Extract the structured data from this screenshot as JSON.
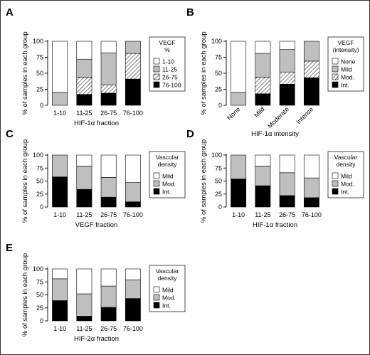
{
  "colors": {
    "black": "#000000",
    "gray": "#bfbfbf",
    "white": "#ffffff",
    "hatch": "hatch"
  },
  "chart_data": [
    {
      "panel": "A",
      "type": "bar",
      "stacked": true,
      "categories": [
        "1-10",
        "11-25",
        "26-75",
        "76-100"
      ],
      "xlabel": "HIF-1α fraction",
      "ylabel": "% of samples in each group",
      "ylim": [
        0,
        100
      ],
      "yticks": [
        0,
        25,
        50,
        75,
        100
      ],
      "legend": {
        "title": [
          "VEGF",
          "%"
        ],
        "placement": "right"
      },
      "series": [
        {
          "name": "76-100",
          "fill": "black",
          "values": [
            0,
            17,
            19,
            41
          ]
        },
        {
          "name": "26-75",
          "fill": "hatch",
          "values": [
            0,
            27,
            13,
            40
          ]
        },
        {
          "name": "11-25",
          "fill": "gray",
          "values": [
            20,
            28,
            50,
            19
          ]
        },
        {
          "name": "1-10",
          "fill": "white",
          "values": [
            80,
            28,
            18,
            0
          ]
        }
      ]
    },
    {
      "panel": "B",
      "type": "bar",
      "stacked": true,
      "categories": [
        "None",
        "Mild",
        "Moderate",
        "Intense"
      ],
      "x_rotated": true,
      "xlabel": "HIF-1α intensity",
      "ylabel": "% of samples in each group",
      "ylim": [
        0,
        100
      ],
      "yticks": [
        0,
        25,
        50,
        75,
        100
      ],
      "legend": {
        "title": [
          "VEGF",
          "(intensity)"
        ],
        "placement": "right"
      },
      "series": [
        {
          "name": "Int.",
          "fill": "black",
          "values": [
            0,
            18,
            33,
            43
          ]
        },
        {
          "name": "Mod.",
          "fill": "hatch",
          "values": [
            0,
            26,
            19,
            26
          ]
        },
        {
          "name": "Mild",
          "fill": "gray",
          "values": [
            20,
            37,
            35,
            31
          ]
        },
        {
          "name": "None",
          "fill": "white",
          "values": [
            80,
            19,
            13,
            0
          ]
        }
      ]
    },
    {
      "panel": "C",
      "type": "bar",
      "stacked": true,
      "categories": [
        "1-10",
        "11-25",
        "26-75",
        "76-100"
      ],
      "xlabel": "VEGF fraction",
      "ylabel": "% of samples in each group",
      "ylim": [
        0,
        100
      ],
      "yticks": [
        0,
        25,
        50,
        75,
        100
      ],
      "legend": {
        "title": [
          "Vascular",
          "density"
        ],
        "placement": "right"
      },
      "series": [
        {
          "name": "Int.",
          "fill": "black",
          "values": [
            58,
            34,
            19,
            10
          ]
        },
        {
          "name": "Mod.",
          "fill": "gray",
          "values": [
            42,
            45,
            38,
            37
          ]
        },
        {
          "name": "Mild",
          "fill": "white",
          "values": [
            0,
            21,
            43,
            53
          ]
        }
      ]
    },
    {
      "panel": "D",
      "type": "bar",
      "stacked": true,
      "categories": [
        "1-10",
        "11-25",
        "26-75",
        "76-100"
      ],
      "xlabel": "HIF-1α fraction",
      "ylabel": "% of samples in each group",
      "ylim": [
        0,
        100
      ],
      "yticks": [
        0,
        25,
        50,
        75,
        100
      ],
      "legend": {
        "title": [
          "Vascular",
          "density"
        ],
        "placement": "right"
      },
      "series": [
        {
          "name": "Int.",
          "fill": "black",
          "values": [
            54,
            41,
            22,
            18
          ]
        },
        {
          "name": "Mod.",
          "fill": "gray",
          "values": [
            46,
            38,
            44,
            38
          ]
        },
        {
          "name": "Mild",
          "fill": "white",
          "values": [
            0,
            21,
            34,
            44
          ]
        }
      ]
    },
    {
      "panel": "E",
      "type": "bar",
      "stacked": true,
      "categories": [
        "1-10",
        "11-25",
        "26-75",
        "76-100"
      ],
      "xlabel": "HIF-2α fraction",
      "ylabel": "% of samples in each group",
      "ylim": [
        0,
        100
      ],
      "yticks": [
        0,
        25,
        50,
        75,
        100
      ],
      "legend": {
        "title": [
          "Vascular",
          "density"
        ],
        "placement": "right"
      },
      "series": [
        {
          "name": "Int.",
          "fill": "black",
          "values": [
            39,
            9,
            26,
            43
          ]
        },
        {
          "name": "Mod.",
          "fill": "gray",
          "values": [
            42,
            43,
            41,
            36
          ]
        },
        {
          "name": "Mild",
          "fill": "white",
          "values": [
            19,
            48,
            33,
            21
          ]
        }
      ]
    }
  ]
}
